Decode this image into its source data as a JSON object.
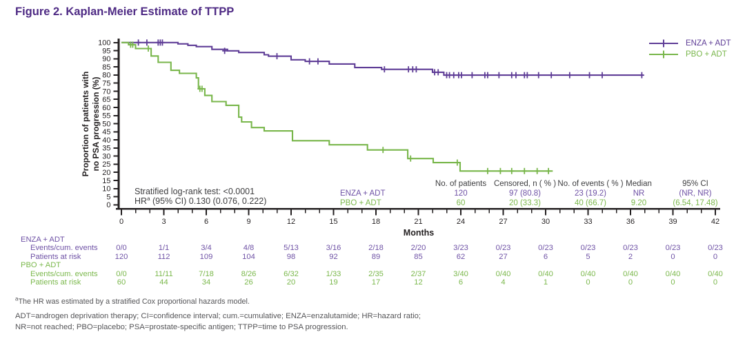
{
  "title": "Figure 2. Kaplan-Meier Estimate of TTPP",
  "colors": {
    "title": "#4e2a84",
    "axis": "#231f20",
    "header_text": "#3d3d3f",
    "footnote_text": "#545457",
    "enza": "#5e3c96",
    "enza_value": "#6e51a5",
    "pbo": "#78b64a",
    "pbo_value": "#7bb84c"
  },
  "axes": {
    "y_label_line1": "Proportion of patients with",
    "y_label_line2": "no PSA progression (%)",
    "x_label": "Months",
    "y_ticks": [
      100,
      95,
      90,
      85,
      80,
      75,
      70,
      65,
      60,
      55,
      50,
      45,
      40,
      35,
      30,
      25,
      20,
      15,
      10,
      5,
      0
    ],
    "x_major_ticks": [
      0,
      3,
      6,
      9,
      12,
      15,
      18,
      21,
      24,
      27,
      30,
      33,
      36,
      39,
      42
    ],
    "x_minor_step": 1
  },
  "stats": {
    "line1": "Stratified log-rank test: <0.0001",
    "hr_prefix": "HR",
    "hr_sup": "a",
    "hr_rest": " (95% CI) 0.130 (0.076, 0.222)"
  },
  "chart_data": {
    "type": "line",
    "step": true,
    "title": "Kaplan-Meier Estimate of TTPP",
    "xlabel": "Months",
    "ylabel": "Proportion of patients with no PSA progression (%)",
    "xlim": [
      0,
      42
    ],
    "ylim": [
      0,
      100
    ],
    "grid": false,
    "legend_position": "top-right",
    "series": [
      {
        "name": "ENZA + ADT",
        "color": "#5e3c96",
        "end_x": 36.9,
        "points": [
          [
            0,
            100
          ],
          [
            4,
            99.2
          ],
          [
            4.7,
            98.3
          ],
          [
            5.3,
            97.5
          ],
          [
            6.4,
            95.8
          ],
          [
            7.5,
            94.9
          ],
          [
            8.3,
            93.9
          ],
          [
            10.1,
            92.5
          ],
          [
            10.4,
            91.6
          ],
          [
            12,
            89.4
          ],
          [
            13,
            88.4
          ],
          [
            14.7,
            86.8
          ],
          [
            16.5,
            84.6
          ],
          [
            18.4,
            83.5
          ],
          [
            22,
            81.7
          ],
          [
            22.8,
            79.9
          ]
        ],
        "censors": [
          [
            1.2,
            100
          ],
          [
            1.8,
            100
          ],
          [
            2.6,
            100
          ],
          [
            2.75,
            100
          ],
          [
            2.9,
            100
          ],
          [
            7.3,
            94.9
          ],
          [
            11,
            91.6
          ],
          [
            13.3,
            88.4
          ],
          [
            13.9,
            88.4
          ],
          [
            18.6,
            83.5
          ],
          [
            20.3,
            83.5
          ],
          [
            20.6,
            83.5
          ],
          [
            20.85,
            83.5
          ],
          [
            22.15,
            81.7
          ],
          [
            22.4,
            81.7
          ],
          [
            23,
            79.9
          ],
          [
            23.2,
            79.9
          ],
          [
            23.5,
            79.9
          ],
          [
            23.85,
            79.9
          ],
          [
            24.05,
            79.9
          ],
          [
            24.8,
            79.9
          ],
          [
            25.7,
            79.9
          ],
          [
            25.9,
            79.9
          ],
          [
            26.7,
            79.9
          ],
          [
            27.6,
            79.9
          ],
          [
            27.9,
            79.9
          ],
          [
            28.5,
            79.9
          ],
          [
            28.7,
            79.9
          ],
          [
            29.5,
            79.9
          ],
          [
            30.4,
            79.9
          ],
          [
            31.7,
            79.9
          ],
          [
            33.1,
            79.9
          ],
          [
            34,
            79.9
          ],
          [
            36.8,
            79.9
          ]
        ]
      },
      {
        "name": "PBO + ADT",
        "color": "#78b64a",
        "end_x": 30.5,
        "points": [
          [
            0,
            100
          ],
          [
            0.5,
            98.7
          ],
          [
            1,
            96.3
          ],
          [
            2.1,
            91.7
          ],
          [
            2.6,
            87.8
          ],
          [
            3.5,
            82.9
          ],
          [
            4.1,
            81
          ],
          [
            5.3,
            78.2
          ],
          [
            5.45,
            71.5
          ],
          [
            5.9,
            67.4
          ],
          [
            6.4,
            63.6
          ],
          [
            7.4,
            61.3
          ],
          [
            8.3,
            54
          ],
          [
            8.5,
            51.1
          ],
          [
            9.2,
            47.6
          ],
          [
            10.1,
            45.5
          ],
          [
            12.1,
            39.5
          ],
          [
            14.7,
            37
          ],
          [
            17.4,
            33.8
          ],
          [
            20.25,
            28.5
          ],
          [
            22.05,
            26
          ],
          [
            23.95,
            20.8
          ]
        ],
        "censors": [
          [
            0.65,
            98.7
          ],
          [
            0.8,
            98.7
          ],
          [
            1.9,
            96.3
          ],
          [
            5.55,
            71.5
          ],
          [
            5.7,
            71.5
          ],
          [
            18.5,
            33.8
          ],
          [
            20.45,
            28.5
          ],
          [
            23.75,
            26
          ],
          [
            25.9,
            20.8
          ],
          [
            26.8,
            20.8
          ],
          [
            27.6,
            20.8
          ],
          [
            28.5,
            20.8
          ],
          [
            29.4,
            20.8
          ],
          [
            30.2,
            20.8
          ]
        ]
      }
    ]
  },
  "summary_table": {
    "headers": [
      "No. of patients",
      "Censored, n ( % )",
      "No. of events ( % )",
      "Median",
      "95% CI"
    ],
    "rows": [
      {
        "label": "ENZA + ADT",
        "color": "#6e51a5",
        "values": [
          "120",
          "97 (80.8)",
          "23 (19.2)",
          "NR",
          "(NR, NR)"
        ]
      },
      {
        "label": "PBO + ADT",
        "color": "#7bb84c",
        "values": [
          "60",
          "20 (33.3)",
          "40 (66.7)",
          "9.20",
          "(6.54, 17.48)"
        ]
      }
    ]
  },
  "risk_table": {
    "columns_months": [
      0,
      3,
      6,
      9,
      12,
      15,
      18,
      21,
      24,
      27,
      30,
      33,
      36,
      39,
      42
    ],
    "groups": [
      {
        "label": "ENZA + ADT",
        "color": "#6e51a5",
        "rows": [
          {
            "label": "Events/cum. events",
            "values": [
              "0/0",
              "1/1",
              "3/4",
              "4/8",
              "5/13",
              "3/16",
              "2/18",
              "2/20",
              "3/23",
              "0/23",
              "0/23",
              "0/23",
              "0/23",
              "0/23",
              "0/23"
            ]
          },
          {
            "label": "Patients at risk",
            "values": [
              "120",
              "112",
              "109",
              "104",
              "98",
              "92",
              "89",
              "85",
              "62",
              "27",
              "6",
              "5",
              "2",
              "0",
              "0"
            ]
          }
        ]
      },
      {
        "label": "PBO + ADT",
        "color": "#7bb84c",
        "rows": [
          {
            "label": "Events/cum. events",
            "values": [
              "0/0",
              "11/11",
              "7/18",
              "8/26",
              "6/32",
              "1/33",
              "2/35",
              "2/37",
              "3/40",
              "0/40",
              "0/40",
              "0/40",
              "0/40",
              "0/40",
              "0/40"
            ]
          },
          {
            "label": "Patients at risk",
            "values": [
              "60",
              "44",
              "34",
              "26",
              "20",
              "19",
              "17",
              "12",
              "6",
              "4",
              "1",
              "0",
              "0",
              "0",
              "0"
            ]
          }
        ]
      }
    ]
  },
  "footnotes": {
    "sup": "a",
    "line1": "The HR was estimated by a stratified Cox proportional hazards model.",
    "abbrev1": "ADT=androgen deprivation therapy; CI=confidence interval; cum.=cumulative; ENZA=enzalutamide; HR=hazard ratio;",
    "abbrev2": "NR=not reached; PBO=placebo; PSA=prostate-specific antigen; TTPP=time to PSA progression."
  }
}
